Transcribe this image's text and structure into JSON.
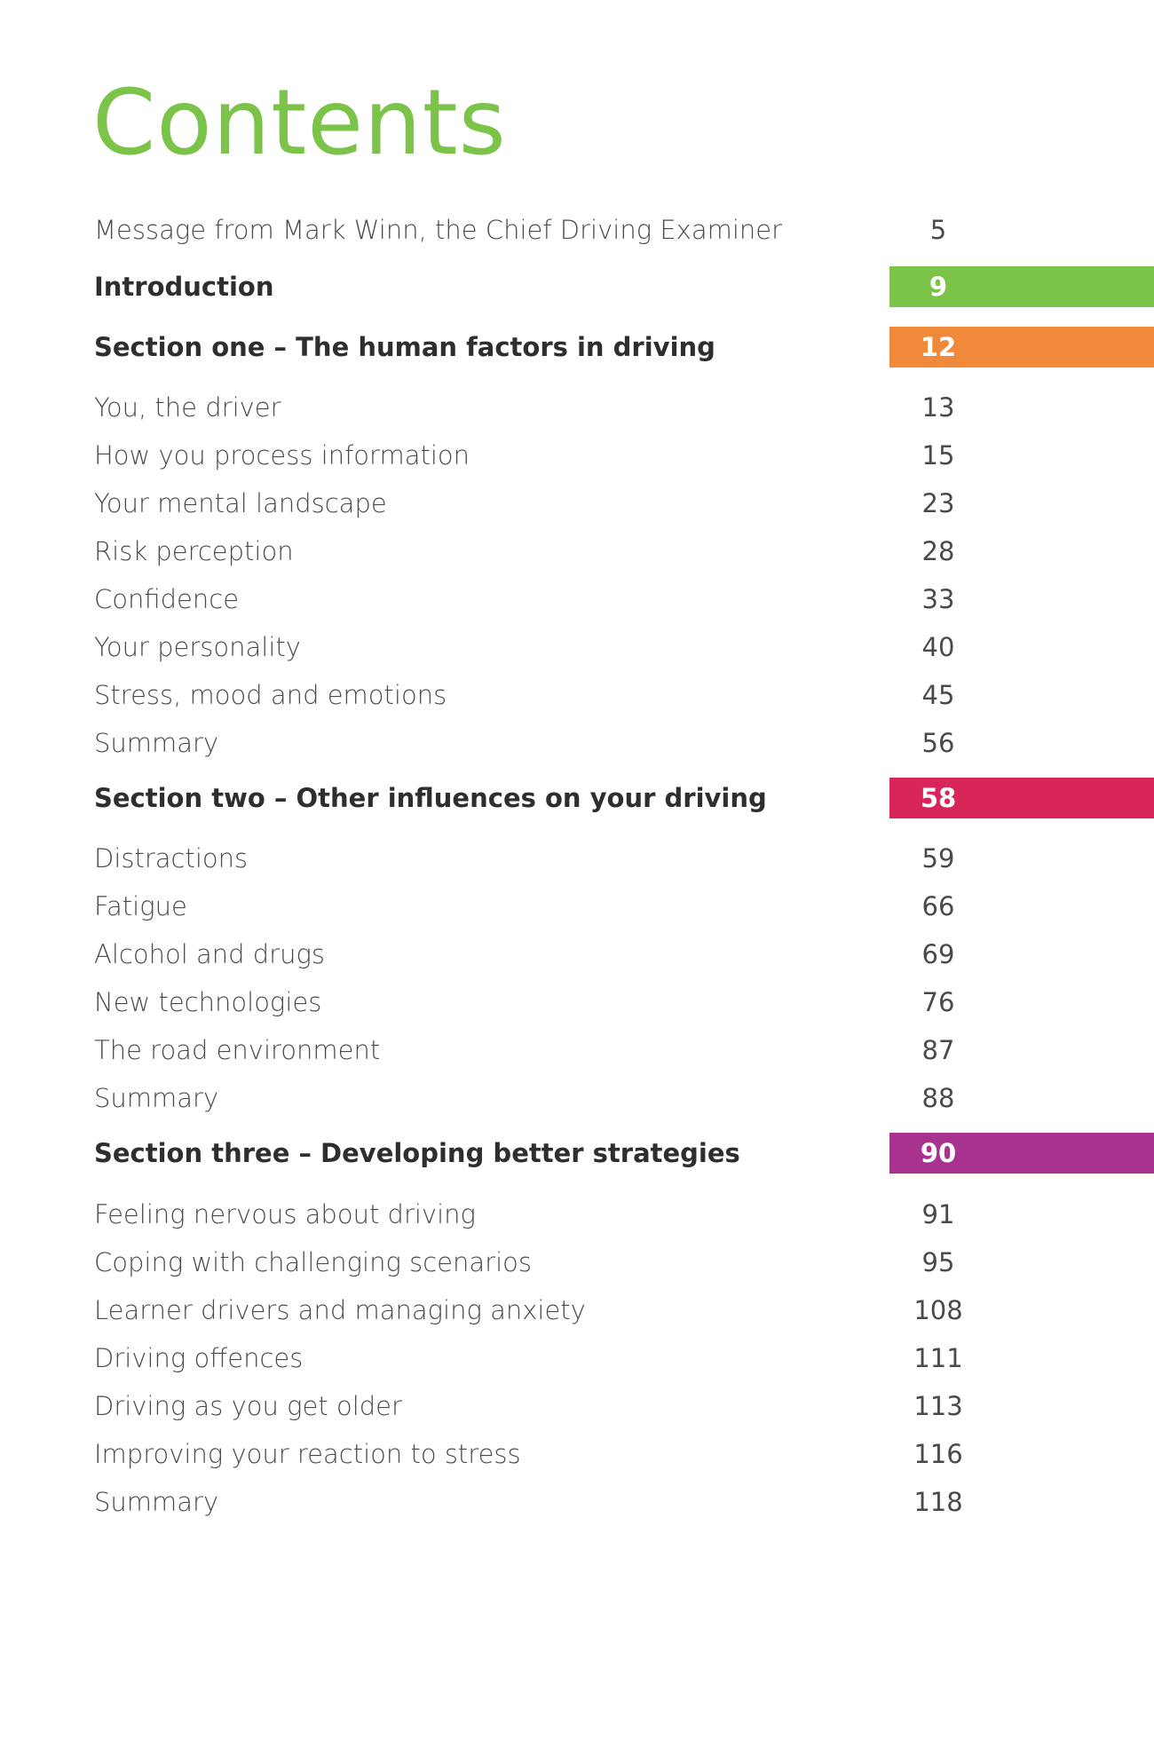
{
  "title": "Contents",
  "colors": {
    "title": "#7cc34a",
    "introduction": "#7cc34a",
    "section_one": "#f08a3a",
    "section_two": "#d9265a",
    "section_three": "#a8338f"
  },
  "entries": [
    {
      "label": "Message from Mark Winn, the Chief Driving Examiner",
      "page": "5"
    },
    {
      "label": "Introduction",
      "page": "9"
    },
    {
      "label": "Section one – The human factors in driving",
      "page": "12"
    },
    {
      "label": "You, the driver",
      "page": "13"
    },
    {
      "label": "How you process information",
      "page": "15"
    },
    {
      "label": "Your mental landscape",
      "page": "23"
    },
    {
      "label": "Risk perception",
      "page": "28"
    },
    {
      "label": "Confidence",
      "page": "33"
    },
    {
      "label": "Your personality",
      "page": "40"
    },
    {
      "label": "Stress, mood and emotions",
      "page": "45"
    },
    {
      "label": "Summary",
      "page": "56"
    },
    {
      "label": "Section two – Other influences on your driving",
      "page": "58"
    },
    {
      "label": "Distractions",
      "page": "59"
    },
    {
      "label": "Fatigue",
      "page": "66"
    },
    {
      "label": "Alcohol and drugs",
      "page": "69"
    },
    {
      "label": "New technologies",
      "page": "76"
    },
    {
      "label": "The road environment",
      "page": "87"
    },
    {
      "label": "Summary",
      "page": "88"
    },
    {
      "label": "Section three – Developing better strategies",
      "page": "90"
    },
    {
      "label": "Feeling nervous about driving",
      "page": "91"
    },
    {
      "label": "Coping with challenging scenarios",
      "page": "95"
    },
    {
      "label": "Learner drivers and managing anxiety",
      "page": "108"
    },
    {
      "label": "Driving offences",
      "page": "111"
    },
    {
      "label": "Driving as you get older",
      "page": "113"
    },
    {
      "label": "Improving your reaction to stress",
      "page": "116"
    },
    {
      "label": "Summary",
      "page": "118"
    }
  ]
}
